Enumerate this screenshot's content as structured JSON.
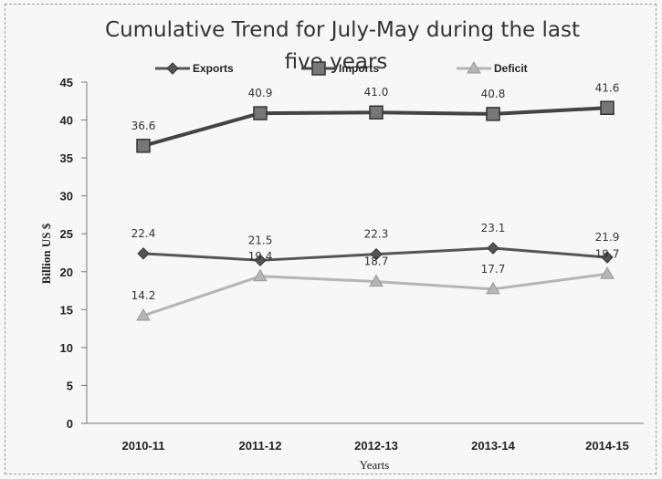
{
  "chart_data": {
    "type": "line",
    "title": "Cumulative Trend for July-May   during the last five years",
    "title_lines": [
      "Cumulative Trend for July-May   during the last",
      "five years"
    ],
    "xlabel": "Yearts",
    "ylabel": "Billion US $",
    "categories": [
      "2010-11",
      "2011-12",
      "2012-13",
      "2013-14",
      "2014-15"
    ],
    "ylim": [
      0,
      45
    ],
    "yticks": [
      0,
      5,
      10,
      15,
      20,
      25,
      30,
      35,
      40,
      45
    ],
    "grid": false,
    "legend_position": "top",
    "series": [
      {
        "name": "Exports",
        "values": [
          22.4,
          21.5,
          22.3,
          23.1,
          21.9
        ],
        "labels": [
          "22.4",
          "21.5",
          "22.3",
          "23.1",
          "21.9"
        ],
        "color": "#555555",
        "marker": "diamond"
      },
      {
        "name": "Imports",
        "values": [
          36.6,
          40.9,
          41.0,
          40.8,
          41.6
        ],
        "labels": [
          "36.6",
          "40.9",
          "41.0",
          "40.8",
          "41.6"
        ],
        "color": "#444444",
        "marker": "square"
      },
      {
        "name": "Deficit",
        "values": [
          14.2,
          19.4,
          18.7,
          17.7,
          19.7
        ],
        "labels": [
          "14.2",
          "19.4",
          "18.7",
          "17.7",
          "19.7"
        ],
        "color": "#b5b5b5",
        "marker": "triangle"
      }
    ]
  }
}
